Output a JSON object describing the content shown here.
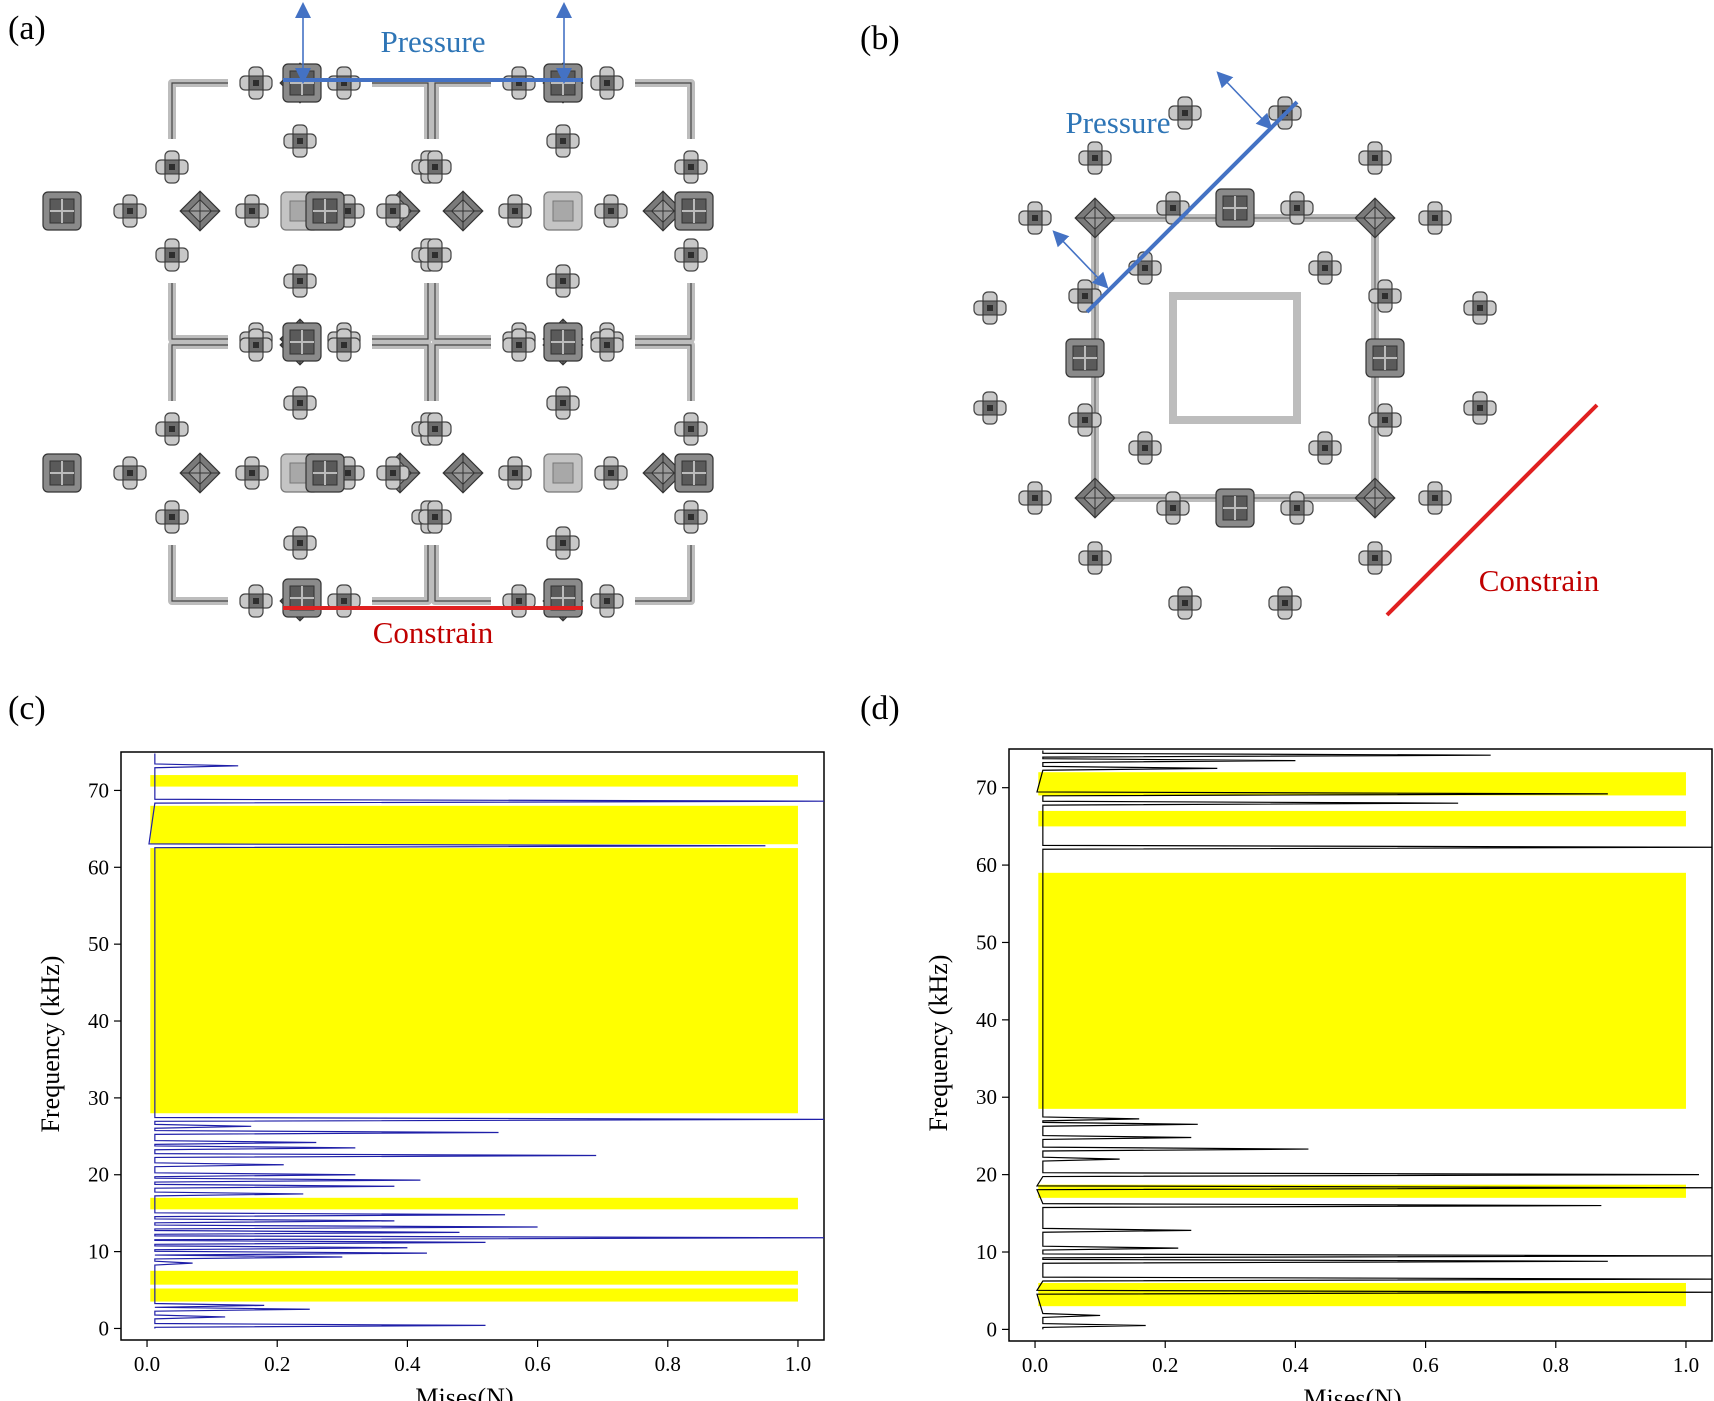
{
  "panels": {
    "a": {
      "label": "(a)",
      "top_label": "Pressure",
      "bottom_label": "Constrain"
    },
    "b": {
      "label": "(b)",
      "top_label": "Pressure",
      "bottom_label": "Constrain"
    },
    "c": {
      "label": "(c)"
    },
    "d": {
      "label": "(d)"
    }
  },
  "colors": {
    "pressure": "#4472C4",
    "constrain": "#E02020",
    "band": "#FFFF00",
    "curve_c": "#1F1FA8",
    "curve_d": "#000000",
    "lattice_dark": "#5a5a5a",
    "lattice_light": "#b5b5b5"
  },
  "chart_data": [
    {
      "panel": "c",
      "type": "line",
      "xlabel": "Mises(N)",
      "ylabel": "Frequency (kHz)",
      "xlim": [
        -0.04,
        1.04
      ],
      "ylim": [
        -1.5,
        75
      ],
      "xticks": [
        "0.0",
        "0.2",
        "0.4",
        "0.6",
        "0.8",
        "1.0"
      ],
      "xtick_values": [
        0,
        0.2,
        0.4,
        0.6,
        0.8,
        1.0
      ],
      "yticks": [
        "0",
        "10",
        "20",
        "30",
        "40",
        "50",
        "60",
        "70"
      ],
      "ytick_values": [
        0,
        10,
        20,
        30,
        40,
        50,
        60,
        70
      ],
      "band_gaps": [
        [
          3.5,
          5.2
        ],
        [
          5.7,
          7.5
        ],
        [
          15.5,
          17.0
        ],
        [
          28.0,
          62.5
        ],
        [
          63.0,
          68.0
        ],
        [
          70.5,
          72.0
        ]
      ],
      "band_value": 1.0,
      "peaks": [
        [
          0.4,
          0.52
        ],
        [
          1.5,
          0.12
        ],
        [
          2.5,
          0.25
        ],
        [
          3.0,
          0.18
        ],
        [
          8.5,
          0.07
        ],
        [
          9.3,
          0.3
        ],
        [
          9.8,
          0.43
        ],
        [
          10.5,
          0.4
        ],
        [
          11.2,
          0.52
        ],
        [
          11.8,
          1.05
        ],
        [
          12.5,
          0.48
        ],
        [
          13.2,
          0.6
        ],
        [
          14.0,
          0.38
        ],
        [
          14.8,
          0.55
        ],
        [
          17.5,
          0.24
        ],
        [
          18.5,
          0.38
        ],
        [
          19.3,
          0.42
        ],
        [
          20.0,
          0.32
        ],
        [
          21.3,
          0.21
        ],
        [
          22.5,
          0.69
        ],
        [
          23.5,
          0.32
        ],
        [
          24.2,
          0.26
        ],
        [
          25.5,
          0.54
        ],
        [
          26.3,
          0.16
        ],
        [
          27.2,
          1.05
        ],
        [
          62.8,
          0.95
        ],
        [
          68.6,
          1.05
        ],
        [
          73.2,
          0.14
        ]
      ]
    },
    {
      "panel": "d",
      "type": "line",
      "xlabel": "Mises(N)",
      "ylabel": "Frequency (kHz)",
      "xlim": [
        -0.04,
        1.04
      ],
      "ylim": [
        -1.5,
        75
      ],
      "xticks": [
        "0.0",
        "0.2",
        "0.4",
        "0.6",
        "0.8",
        "1.0"
      ],
      "xtick_values": [
        0,
        0.2,
        0.4,
        0.6,
        0.8,
        1.0
      ],
      "yticks": [
        "0",
        "10",
        "20",
        "30",
        "40",
        "50",
        "60",
        "70"
      ],
      "ytick_values": [
        0,
        10,
        20,
        30,
        40,
        50,
        60,
        70
      ],
      "band_gaps": [
        [
          3.0,
          6.0
        ],
        [
          17.0,
          18.7
        ],
        [
          28.5,
          59.0
        ],
        [
          65.0,
          67.0
        ],
        [
          69.0,
          72.0
        ]
      ],
      "band_value": 1.0,
      "peaks": [
        [
          0.5,
          0.17
        ],
        [
          1.8,
          0.1
        ],
        [
          4.8,
          1.05
        ],
        [
          6.5,
          1.05
        ],
        [
          8.8,
          0.88
        ],
        [
          9.5,
          1.05
        ],
        [
          10.5,
          0.22
        ],
        [
          12.8,
          0.24
        ],
        [
          16.0,
          0.87
        ],
        [
          18.3,
          1.05
        ],
        [
          20.0,
          1.02
        ],
        [
          22.0,
          0.13
        ],
        [
          23.3,
          0.42
        ],
        [
          24.8,
          0.24
        ],
        [
          26.5,
          0.25
        ],
        [
          27.2,
          0.16
        ],
        [
          62.3,
          1.05
        ],
        [
          68.0,
          0.65
        ],
        [
          69.2,
          0.88
        ],
        [
          72.5,
          0.28
        ],
        [
          73.5,
          0.4
        ],
        [
          74.2,
          0.7
        ]
      ]
    }
  ]
}
